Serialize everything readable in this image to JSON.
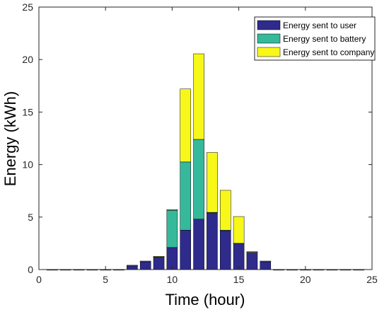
{
  "chart_data": {
    "type": "bar",
    "stacked": true,
    "xlabel": "Time (hour)",
    "ylabel": "Energy (kWh)",
    "xlim": [
      0,
      25
    ],
    "ylim": [
      0,
      25
    ],
    "xticks": [
      0,
      5,
      10,
      15,
      20,
      25
    ],
    "yticks": [
      0,
      5,
      10,
      15,
      20,
      25
    ],
    "grid": false,
    "legend_position": "top-right",
    "x": [
      1,
      2,
      3,
      4,
      5,
      6,
      7,
      8,
      9,
      10,
      11,
      12,
      13,
      14,
      15,
      16,
      17,
      18,
      19,
      20,
      21,
      22,
      23,
      24
    ],
    "series": [
      {
        "name": "Energy sent to user",
        "color": "#2e2b8c",
        "values": [
          0,
          0,
          0,
          0,
          0,
          0,
          0.4,
          0.8,
          1.25,
          2.1,
          3.75,
          4.8,
          5.45,
          3.75,
          2.5,
          1.7,
          0.8,
          0,
          0,
          0,
          0,
          0,
          0,
          0
        ]
      },
      {
        "name": "Energy sent to battery",
        "color": "#35b99a",
        "values": [
          0,
          0,
          0,
          0,
          0,
          0,
          0,
          0,
          0,
          3.6,
          6.5,
          7.6,
          0,
          0,
          0,
          0,
          0,
          0,
          0,
          0,
          0,
          0,
          0,
          0
        ]
      },
      {
        "name": "Energy sent to company",
        "color": "#f7f71a",
        "values": [
          0,
          0,
          0,
          0,
          0,
          0,
          0,
          0,
          0,
          0,
          6.95,
          8.15,
          5.7,
          3.8,
          2.55,
          0,
          0,
          0,
          0,
          0,
          0,
          0,
          0,
          0
        ]
      }
    ]
  }
}
